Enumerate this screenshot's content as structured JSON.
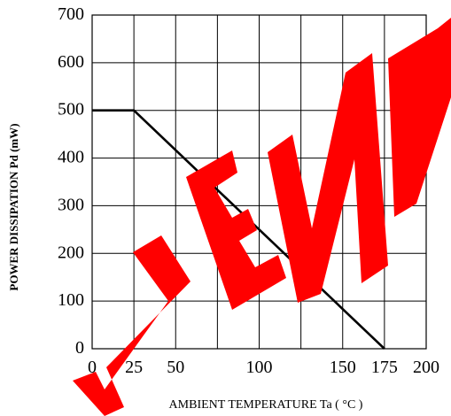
{
  "chart_data": {
    "type": "line",
    "xlabel": "AMBIENT TEMPERATURE   Ta ( °C )",
    "ylabel": "POWER DISSIPATION    Pd (mW)",
    "xlim": [
      0,
      200
    ],
    "ylim": [
      0,
      700
    ],
    "x_ticks": [
      "0",
      "25",
      "50",
      "100",
      "150",
      "175",
      "200"
    ],
    "y_ticks": [
      "0",
      "100",
      "200",
      "300",
      "400",
      "500",
      "600",
      "700"
    ],
    "grid": true,
    "series": [
      {
        "x": [
          0,
          25,
          175
        ],
        "y": [
          500,
          500,
          0
        ]
      }
    ],
    "watermark": "SEMI",
    "watermark_color": "#ff0000"
  }
}
